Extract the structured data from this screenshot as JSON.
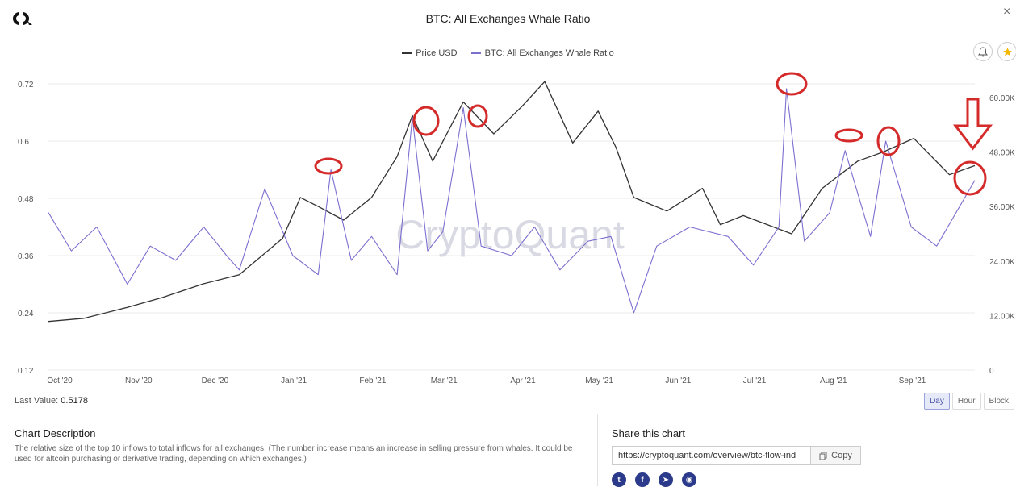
{
  "header": {
    "title": "BTC: All Exchanges Whale Ratio",
    "close_label": "×"
  },
  "legend": {
    "series": [
      {
        "name": "Price USD",
        "color": "#333333"
      },
      {
        "name": "BTC: All Exchanges Whale Ratio",
        "color": "#7b6fd0"
      }
    ]
  },
  "chart_data": {
    "type": "line",
    "title": "BTC: All Exchanges Whale Ratio",
    "x_range": [
      "2020-10-01",
      "2021-09-30"
    ],
    "x_ticks": [
      "Oct '20",
      "Nov '20",
      "Dec '20",
      "Jan '21",
      "Feb '21",
      "Mar '21",
      "Apr '21",
      "May '21",
      "Jun '21",
      "Jul '21",
      "Aug '21",
      "Sep '21"
    ],
    "y_left": {
      "ticks": [
        "0.12",
        "0.24",
        "0.36",
        "0.48",
        "0.6",
        "0.72"
      ],
      "range": [
        0.12,
        0.72
      ]
    },
    "y_right": {
      "ticks": [
        "0",
        "12.00K",
        "24.00K",
        "36.00K",
        "48.00K",
        "60.00K"
      ],
      "range": [
        0,
        63000
      ]
    },
    "watermark": "CryptoQuant",
    "series": [
      {
        "name": "Price USD",
        "axis": "right",
        "color": "#333333",
        "x": [
          "2020-10-01",
          "2020-10-15",
          "2020-11-01",
          "2020-11-15",
          "2020-12-01",
          "2020-12-15",
          "2021-01-01",
          "2021-01-08",
          "2021-01-15",
          "2021-01-25",
          "2021-02-05",
          "2021-02-15",
          "2021-02-21",
          "2021-03-01",
          "2021-03-13",
          "2021-03-25",
          "2021-04-05",
          "2021-04-14",
          "2021-04-25",
          "2021-05-05",
          "2021-05-12",
          "2021-05-19",
          "2021-06-01",
          "2021-06-15",
          "2021-06-22",
          "2021-07-01",
          "2021-07-20",
          "2021-08-01",
          "2021-08-15",
          "2021-08-25",
          "2021-09-06",
          "2021-09-20",
          "2021-09-30"
        ],
        "values": [
          10700,
          11400,
          13800,
          16000,
          19000,
          21000,
          29000,
          38000,
          36000,
          33000,
          38000,
          47000,
          56000,
          46000,
          59000,
          52000,
          58000,
          63500,
          50000,
          57000,
          49000,
          38000,
          35000,
          40000,
          32000,
          34000,
          30000,
          40000,
          46000,
          48000,
          51000,
          43000,
          45000
        ]
      },
      {
        "name": "BTC: All Exchanges Whale Ratio",
        "axis": "left",
        "color": "#7b6fd0",
        "x": [
          "2020-10-01",
          "2020-10-10",
          "2020-10-20",
          "2020-11-01",
          "2020-11-10",
          "2020-11-20",
          "2020-12-01",
          "2020-12-10",
          "2020-12-15",
          "2020-12-25",
          "2021-01-05",
          "2021-01-15",
          "2021-01-20",
          "2021-01-28",
          "2021-02-05",
          "2021-02-15",
          "2021-02-21",
          "2021-02-27",
          "2021-03-05",
          "2021-03-13",
          "2021-03-20",
          "2021-04-01",
          "2021-04-10",
          "2021-04-20",
          "2021-05-01",
          "2021-05-10",
          "2021-05-19",
          "2021-05-28",
          "2021-06-10",
          "2021-06-25",
          "2021-07-05",
          "2021-07-15",
          "2021-07-18",
          "2021-07-25",
          "2021-08-04",
          "2021-08-10",
          "2021-08-20",
          "2021-08-26",
          "2021-09-05",
          "2021-09-15",
          "2021-09-30"
        ],
        "values": [
          0.45,
          0.37,
          0.42,
          0.3,
          0.38,
          0.35,
          0.42,
          0.36,
          0.33,
          0.5,
          0.36,
          0.32,
          0.54,
          0.35,
          0.4,
          0.32,
          0.65,
          0.37,
          0.41,
          0.67,
          0.38,
          0.36,
          0.42,
          0.33,
          0.39,
          0.4,
          0.24,
          0.38,
          0.42,
          0.4,
          0.34,
          0.42,
          0.71,
          0.39,
          0.45,
          0.58,
          0.4,
          0.6,
          0.42,
          0.38,
          0.5178
        ]
      }
    ],
    "annotations": "red circles on whale ratio spikes and red downward arrow at latest value"
  },
  "last_value": {
    "label": "Last Value:",
    "value": "0.5178"
  },
  "periods": [
    {
      "label": "Day",
      "active": true
    },
    {
      "label": "Hour",
      "active": false
    },
    {
      "label": "Block",
      "active": false
    }
  ],
  "description": {
    "title": "Chart Description",
    "text": "The relative size of the top 10 inflows to total inflows for all exchanges. (The number increase means an increase in selling pressure from whales. It could be used for altcoin purchasing or derivative trading, depending on which exchanges.)"
  },
  "share": {
    "title": "Share this chart",
    "url": "https://cryptoquant.com/overview/btc-flow-ind",
    "copy_label": "Copy",
    "socials": [
      {
        "name": "twitter",
        "glyph": "t"
      },
      {
        "name": "facebook",
        "glyph": "f"
      },
      {
        "name": "telegram",
        "glyph": "➤"
      },
      {
        "name": "camera",
        "glyph": "◉"
      }
    ]
  }
}
